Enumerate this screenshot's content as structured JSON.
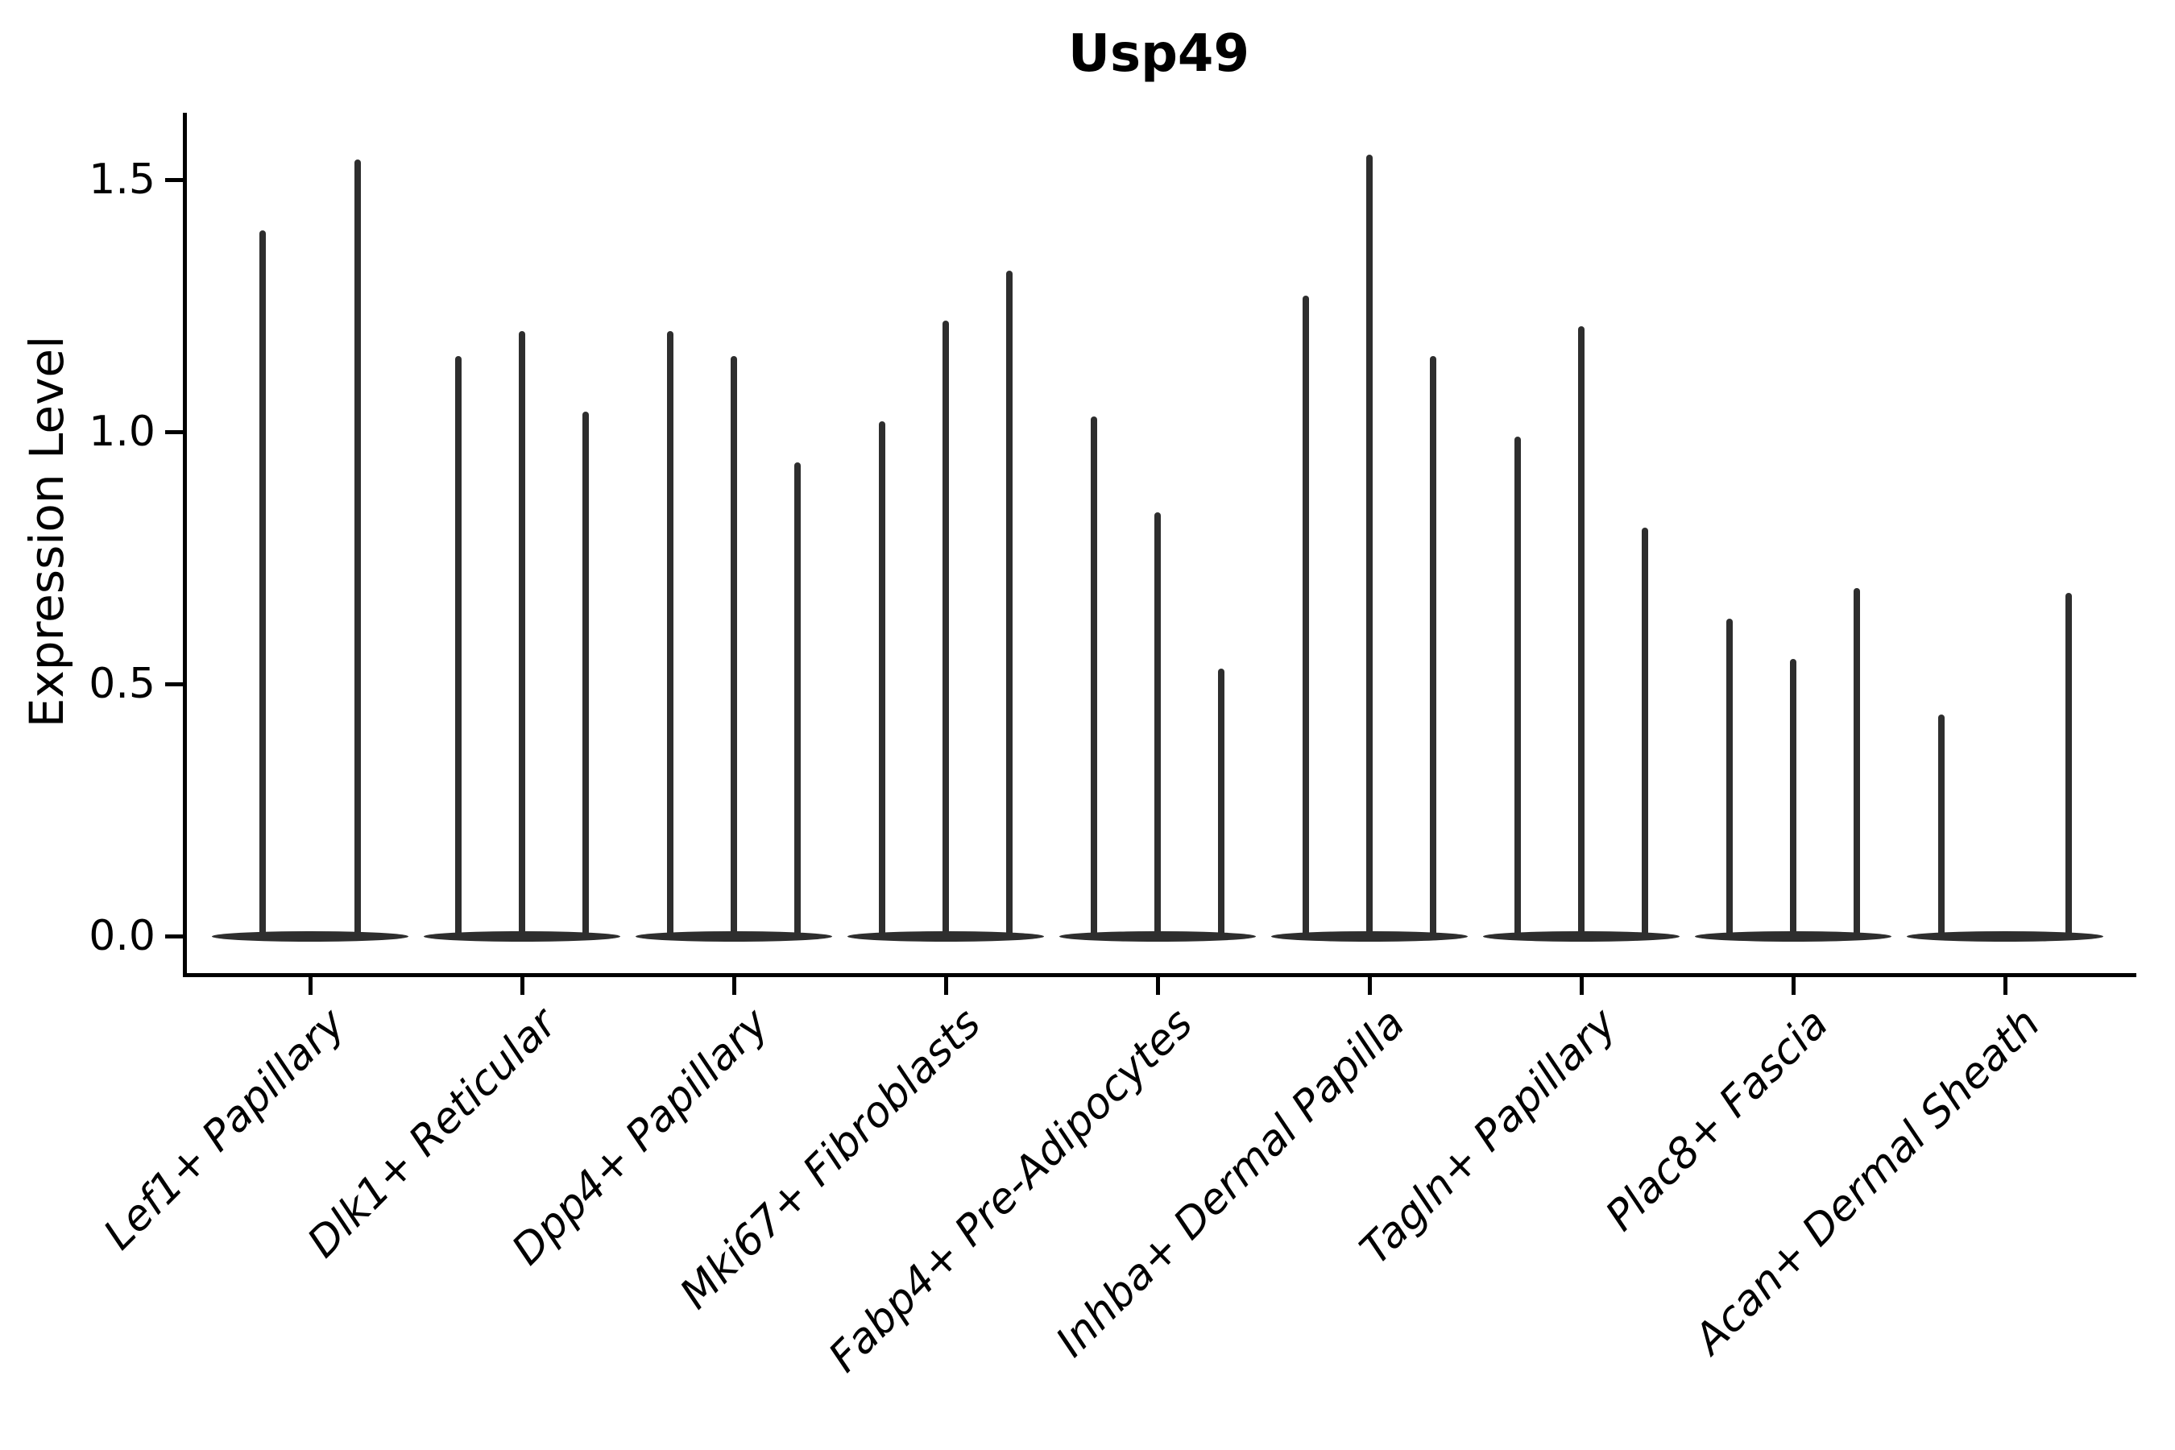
{
  "title": "Usp49",
  "chart_data": {
    "type": "violin",
    "title": "Usp49",
    "xlabel": "",
    "ylabel": "Expression Level",
    "ylim": [
      0,
      1.63
    ],
    "yticks": [
      0.0,
      0.5,
      1.0,
      1.5
    ],
    "ytick_labels": [
      "0.0",
      "0.5",
      "1.0",
      "1.5"
    ],
    "grid": false,
    "legend": "none",
    "x_tick_rotation_deg": 45,
    "categories": [
      "Lef1+ Papillary",
      "Dlk1+ Reticular",
      "Dpp4+ Papillary",
      "Mki67+ Fibroblasts",
      "Fabp4+ Pre-Adipocytes",
      "Inhba+ Dermal Papilla",
      "Tagln+ Papillary",
      "Plac8+ Fascia",
      "Acan+ Dermal Sheath"
    ],
    "violins": [
      {
        "category": "Lef1+ Papillary",
        "spikes": [
          {
            "slot": -59,
            "max": 1.4
          },
          {
            "slot": 59,
            "max": 1.54
          }
        ]
      },
      {
        "category": "Dlk1+ Reticular",
        "spikes": [
          {
            "slot": -79,
            "max": 1.15
          },
          {
            "slot": 0,
            "max": 1.2
          },
          {
            "slot": 79,
            "max": 1.04
          }
        ]
      },
      {
        "category": "Dpp4+ Papillary",
        "spikes": [
          {
            "slot": -79,
            "max": 1.2
          },
          {
            "slot": 0,
            "max": 1.15
          },
          {
            "slot": 79,
            "max": 0.94
          }
        ]
      },
      {
        "category": "Mki67+ Fibroblasts",
        "spikes": [
          {
            "slot": -79,
            "max": 1.02
          },
          {
            "slot": 0,
            "max": 1.22
          },
          {
            "slot": 79,
            "max": 1.32
          }
        ]
      },
      {
        "category": "Fabp4+ Pre-Adipocytes",
        "spikes": [
          {
            "slot": -79,
            "max": 1.03
          },
          {
            "slot": 0,
            "max": 0.84
          },
          {
            "slot": 79,
            "max": 0.53
          }
        ]
      },
      {
        "category": "Inhba+ Dermal Papilla",
        "spikes": [
          {
            "slot": -79,
            "max": 1.27
          },
          {
            "slot": 0,
            "max": 1.55
          },
          {
            "slot": 79,
            "max": 1.15
          }
        ]
      },
      {
        "category": "Tagln+ Papillary",
        "spikes": [
          {
            "slot": -79,
            "max": 0.99
          },
          {
            "slot": 0,
            "max": 1.21
          },
          {
            "slot": 79,
            "max": 0.81
          }
        ]
      },
      {
        "category": "Plac8+ Fascia",
        "spikes": [
          {
            "slot": -79,
            "max": 0.63
          },
          {
            "slot": 0,
            "max": 0.55
          },
          {
            "slot": 79,
            "max": 0.69
          }
        ]
      },
      {
        "category": "Acan+ Dermal Sheath",
        "spikes": [
          {
            "slot": -79,
            "max": 0.44
          },
          {
            "slot": 79,
            "max": 0.68
          }
        ]
      }
    ],
    "colors": {
      "violin": "#2e2e2e",
      "axis": "#000000",
      "text": "#000000",
      "background": "#ffffff"
    }
  }
}
